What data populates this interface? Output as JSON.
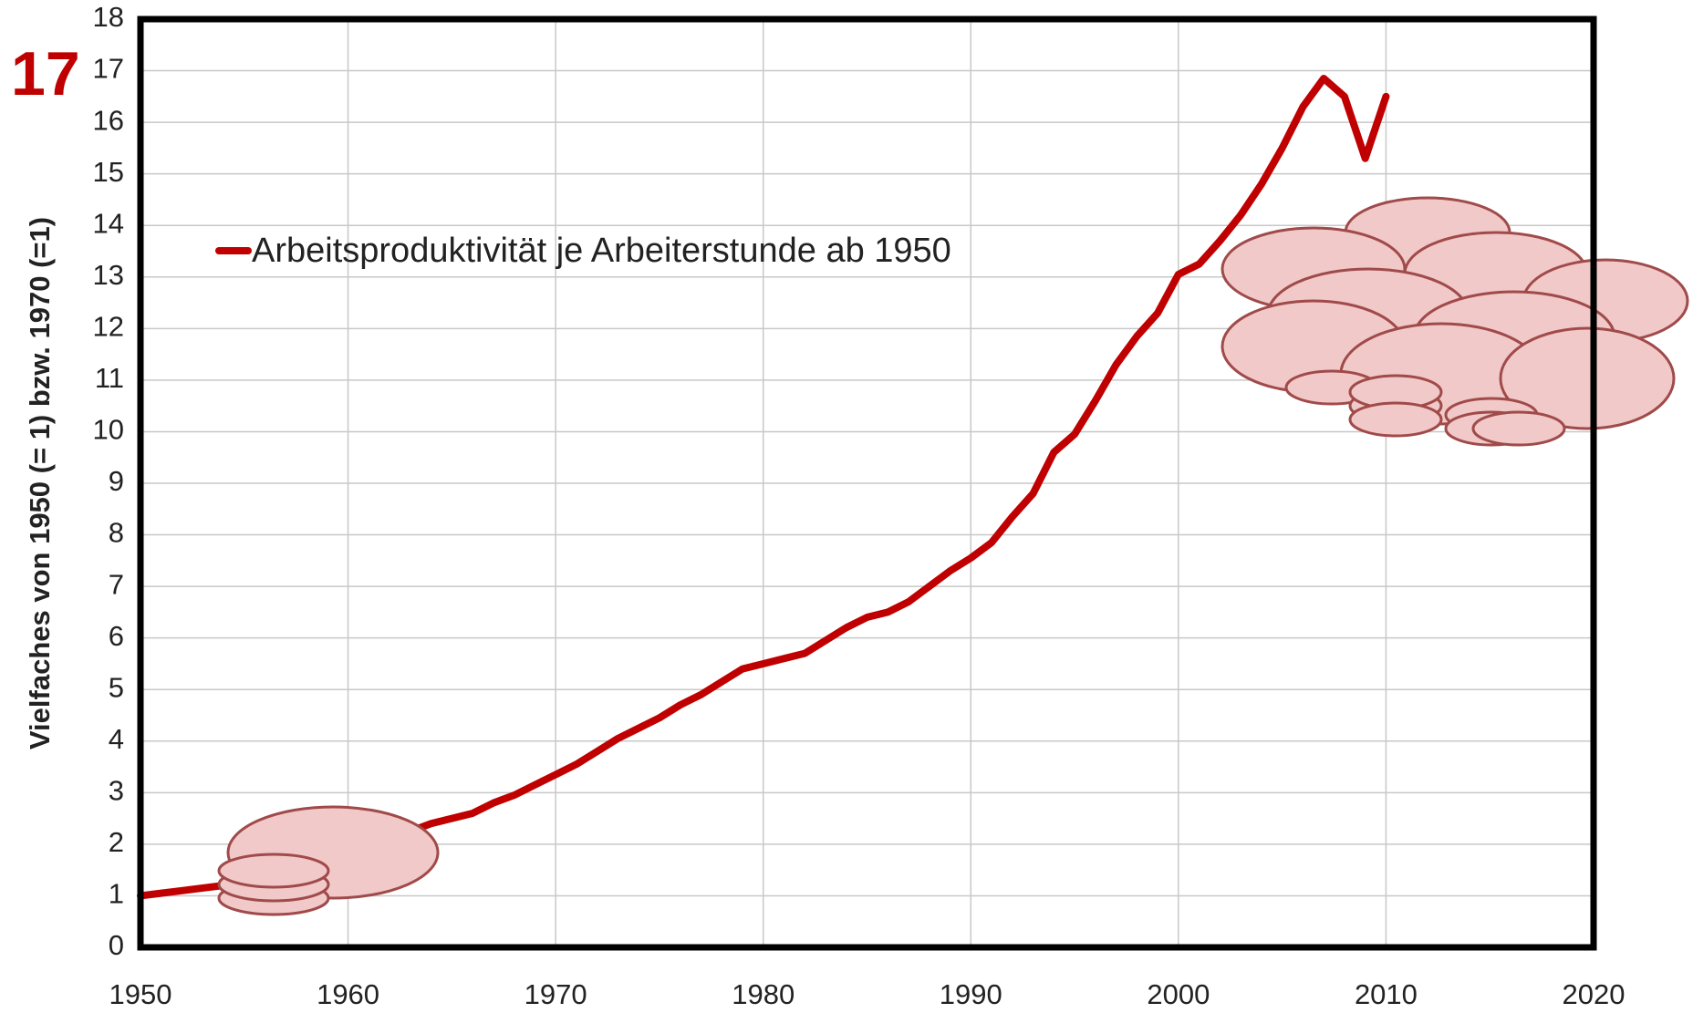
{
  "chart_data": {
    "type": "line",
    "annotation": "17",
    "y_label": "Vielfaches von 1950 (= 1) bzw. 1970 (=1)",
    "x": [
      1950,
      1951,
      1952,
      1953,
      1954,
      1955,
      1956,
      1957,
      1958,
      1959,
      1960,
      1961,
      1962,
      1963,
      1964,
      1965,
      1966,
      1967,
      1968,
      1969,
      1970,
      1971,
      1972,
      1973,
      1974,
      1975,
      1976,
      1977,
      1978,
      1979,
      1980,
      1981,
      1982,
      1983,
      1984,
      1985,
      1986,
      1987,
      1988,
      1989,
      1990,
      1991,
      1992,
      1993,
      1994,
      1995,
      1996,
      1997,
      1998,
      1999,
      2000,
      2001,
      2002,
      2003,
      2004,
      2005,
      2006,
      2007,
      2008,
      2009,
      2010
    ],
    "series": [
      {
        "name": "Arbeitsproduktivität je Arbeiterstunde ab 1950",
        "color": "#c00000",
        "values": [
          1.0,
          1.05,
          1.1,
          1.15,
          1.2,
          1.3,
          1.4,
          1.5,
          1.6,
          1.75,
          1.9,
          2.0,
          2.1,
          2.25,
          2.4,
          2.5,
          2.6,
          2.8,
          2.95,
          3.15,
          3.35,
          3.55,
          3.8,
          4.05,
          4.25,
          4.45,
          4.7,
          4.9,
          5.15,
          5.4,
          5.5,
          5.6,
          5.7,
          5.95,
          6.2,
          6.4,
          6.5,
          6.7,
          7.0,
          7.3,
          7.55,
          7.85,
          8.35,
          8.8,
          9.6,
          9.95,
          10.6,
          11.3,
          11.85,
          12.3,
          13.05,
          13.25,
          13.7,
          14.2,
          14.8,
          15.5,
          16.3,
          16.85,
          16.5,
          15.3,
          16.5
        ]
      }
    ],
    "xlim": [
      1950,
      2020
    ],
    "xticks": [
      1950,
      1960,
      1970,
      1980,
      1990,
      2000,
      2010,
      2020
    ],
    "ylim": [
      0,
      18
    ],
    "yticks": [
      0,
      1,
      2,
      3,
      4,
      5,
      6,
      7,
      8,
      9,
      10,
      11,
      12,
      13,
      14,
      15,
      16,
      17,
      18
    ],
    "grid": true
  }
}
